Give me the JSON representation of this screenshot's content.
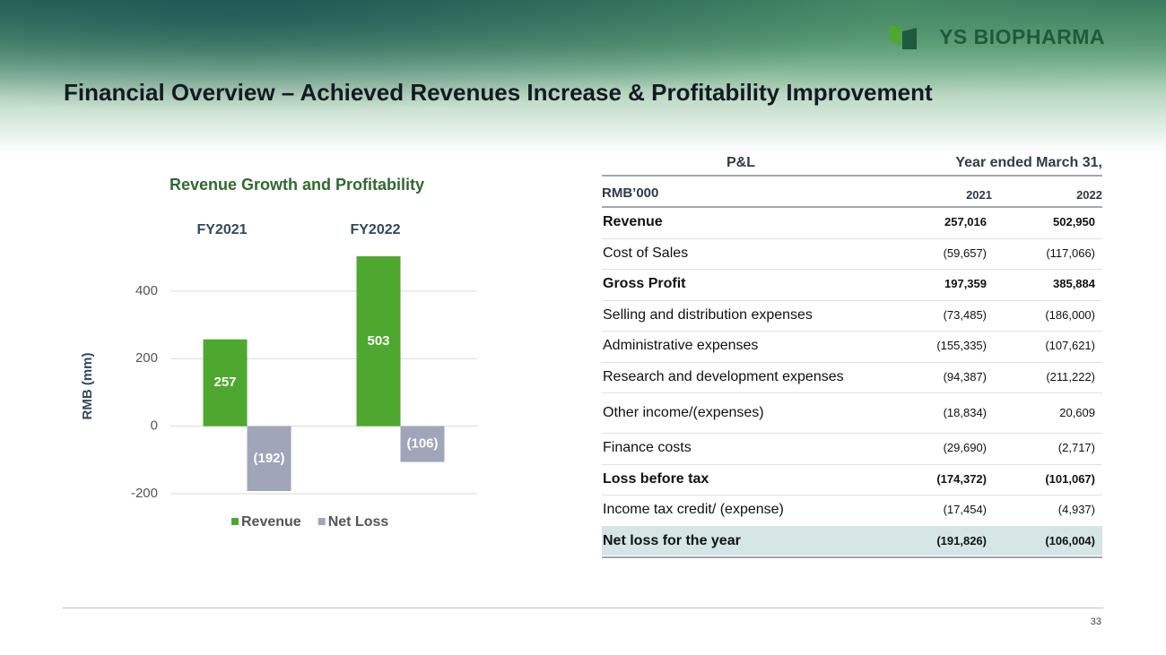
{
  "header": {
    "logo": "YS BIOPHARMA",
    "title": "Financial Overview – Achieved Revenues Increase &  Profitability Improvement"
  },
  "chart_data": {
    "type": "bar",
    "title": "Revenue Growth and Profitability",
    "y_label": "RMB (mm)",
    "categories": [
      "FY2021",
      "FY2022"
    ],
    "series": [
      {
        "name": "Revenue",
        "color": "#4ea72e",
        "values": [
          257,
          503
        ]
      },
      {
        "name": "Net Loss",
        "color": "#a0a5b9",
        "values": [
          -192,
          -106
        ],
        "value_labels": [
          "(192)",
          "(106)"
        ]
      }
    ],
    "ylim": [
      -200,
      600
    ],
    "yticks": [
      -200,
      0,
      200,
      400
    ],
    "grid": true,
    "legend": "bottom"
  },
  "table": {
    "title_left": "P&L",
    "title_right": "Year ended March 31,",
    "unit": "RMB’000",
    "columns": [
      "2021",
      "2022"
    ],
    "rows": [
      {
        "label": "Revenue",
        "values": [
          "257,016",
          "502,950"
        ],
        "bold": true
      },
      {
        "label": "Cost of Sales",
        "values": [
          "(59,657)",
          "(117,066)"
        ]
      },
      {
        "label": "Gross Profit",
        "values": [
          "197,359",
          "385,884"
        ],
        "bold": true
      },
      {
        "label": "Selling and distribution expenses",
        "values": [
          "(73,485)",
          "(186,000)"
        ]
      },
      {
        "label": "Administrative expenses",
        "values": [
          "(155,335)",
          "(107,621)"
        ]
      },
      {
        "label": "Research and development expenses",
        "values": [
          "(94,387)",
          "(211,222)"
        ]
      },
      {
        "label": "Other income/(expenses)",
        "values": [
          "(18,834)",
          "20,609"
        ]
      },
      {
        "label": "Finance costs",
        "values": [
          "(29,690)",
          "(2,717)"
        ]
      },
      {
        "label": "Loss before tax",
        "values": [
          "(174,372)",
          "(101,067)"
        ],
        "bold": true
      },
      {
        "label": "Income tax credit/ (expense)",
        "values": [
          "(17,454)",
          "(4,937)"
        ]
      },
      {
        "label": "Net loss for the year",
        "values": [
          "(191,826)",
          "(106,004)"
        ],
        "bold": true,
        "highlight": true
      }
    ]
  },
  "footer": {
    "page": "33"
  }
}
